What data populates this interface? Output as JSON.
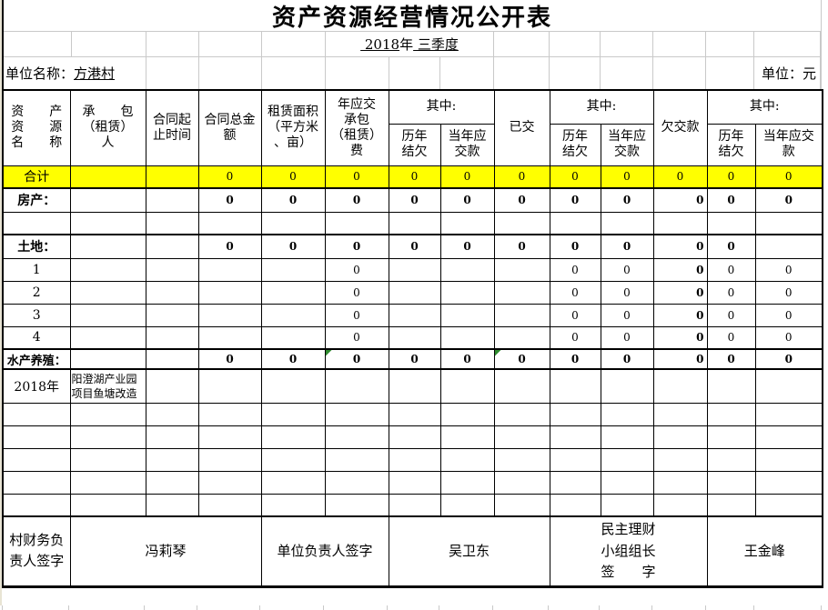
{
  "sheet": {
    "title": "资产资源经营情况公开表",
    "subtitle": {
      "part1": " 2018",
      "part2": "年",
      "part3": " 三季度"
    },
    "unit_row": {
      "label": "单位名称：",
      "value": "方港村",
      "currency": "单位：元"
    },
    "colors": {
      "highlight": "#FFFF00",
      "error_triangle": "#2E8B2E",
      "gridline": "#C9C9C9"
    },
    "header": {
      "asset_name": "资　　产\n资　　源\n名　　称",
      "contractor": "承　　包\n（租赁）\n人",
      "contract_period": "合同起\n止时间",
      "contract_total": "合同总金\n额",
      "lease_area": "租赁面积\n（平方米\n、亩）",
      "annual_fee": "年应交\n承包\n（租赁）\n费",
      "among_1": "其中:",
      "hist_arrears_1": "历年\n结欠",
      "current_due_1": "当年应\n交款",
      "paid": "已交",
      "among_2": "其中:",
      "hist_arrears_2": "历年\n结欠",
      "current_due_2": "当年应\n交款",
      "owed": "欠交款",
      "among_3": "其中:",
      "hist_arrears_3": "历年\n结欠",
      "current_due_3": "当年应交\n款"
    },
    "rows": [
      {
        "name": "total",
        "cells": [
          "合计",
          "",
          "",
          "0",
          "0",
          "0",
          "0",
          "0",
          "0",
          "0",
          "0",
          "0",
          "0",
          "0"
        ]
      },
      {
        "name": "real-estate",
        "cells": [
          "房产：",
          "",
          "",
          "0",
          "0",
          "0",
          "0",
          "0",
          "0",
          "0",
          "0",
          "0",
          "0",
          "0"
        ]
      },
      {
        "name": "blank-1",
        "cells": [
          "",
          "",
          "",
          "",
          "",
          "",
          "",
          "",
          "",
          "",
          "",
          "",
          "",
          ""
        ]
      },
      {
        "name": "land",
        "cells": [
          "土地：",
          "",
          "",
          "0",
          "0",
          "0",
          "0",
          "0",
          "0",
          "0",
          "0",
          "0",
          "0",
          ""
        ]
      },
      {
        "name": "item-1",
        "cells": [
          "1",
          "",
          "",
          "",
          "",
          "0",
          "",
          "",
          "",
          "0",
          "0",
          "0",
          "0",
          "0"
        ]
      },
      {
        "name": "item-2",
        "cells": [
          "2",
          "",
          "",
          "",
          "",
          "0",
          "",
          "",
          "",
          "0",
          "0",
          "0",
          "0",
          "0"
        ]
      },
      {
        "name": "item-3",
        "cells": [
          "3",
          "",
          "",
          "",
          "",
          "0",
          "",
          "",
          "",
          "0",
          "0",
          "0",
          "0",
          "0"
        ]
      },
      {
        "name": "item-4",
        "cells": [
          "4",
          "",
          "",
          "",
          "",
          "0",
          "",
          "",
          "",
          "0",
          "0",
          "0",
          "0",
          "0"
        ],
        "note": ""
      },
      {
        "name": "aquaculture",
        "cells": [
          "水产养殖：",
          "",
          "",
          "0",
          "0",
          "0",
          "0",
          "0",
          "0",
          "0",
          "0",
          "0",
          "0",
          "0"
        ],
        "triangles": [
          6,
          9
        ]
      },
      {
        "name": "year-2018",
        "cells": [
          "2018年",
          "阳澄湖产业园项目鱼塘改造",
          "",
          "",
          "",
          "",
          "",
          "",
          "",
          "",
          "",
          "",
          "",
          ""
        ]
      },
      {
        "name": "blank-2",
        "cells": [
          "",
          "",
          "",
          "",
          "",
          "",
          "",
          "",
          "",
          "",
          "",
          "",
          "",
          ""
        ]
      },
      {
        "name": "blank-3",
        "cells": [
          "",
          "",
          "",
          "",
          "",
          "",
          "",
          "",
          "",
          "",
          "",
          "",
          "",
          ""
        ]
      },
      {
        "name": "blank-4",
        "cells": [
          "",
          "",
          "",
          "",
          "",
          "",
          "",
          "",
          "",
          "",
          "",
          "",
          "",
          ""
        ]
      },
      {
        "name": "blank-5",
        "cells": [
          "",
          "",
          "",
          "",
          "",
          "",
          "",
          "",
          "",
          "",
          "",
          "",
          "",
          ""
        ]
      },
      {
        "name": "blank-6",
        "cells": [
          "",
          "",
          "",
          "",
          "",
          "",
          "",
          "",
          "",
          "",
          "",
          "",
          "",
          ""
        ]
      }
    ],
    "signature": [
      {
        "name": "village-finance-signer-label",
        "label": "村财务负\n责人签字",
        "span": 1
      },
      {
        "name": "village-finance-signer",
        "label": "冯莉琴",
        "span": 3
      },
      {
        "name": "unit-head-signer-label",
        "label": "单位负责人签字",
        "span": 2
      },
      {
        "name": "unit-head-signer",
        "label": "吴卫东",
        "span": 3
      },
      {
        "name": "finance-group-leader-label",
        "label": "民主理财\n小组组长\n签　　字",
        "span": 3
      },
      {
        "name": "finance-group-leader",
        "label": "王金峰",
        "span": 2
      }
    ]
  }
}
